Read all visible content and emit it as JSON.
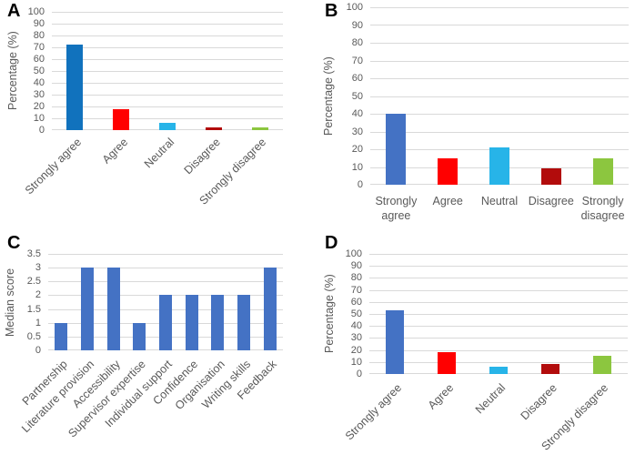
{
  "style": {
    "grid_color": "#D9D9D9",
    "tick_color": "#595959",
    "label_color": "#595959",
    "panel_letter_color": "#000000",
    "background": "#FFFFFF"
  },
  "chart_data": [
    {
      "panel": "A",
      "type": "bar",
      "title": "",
      "xlabel": "",
      "ylabel": "Percentage (%)",
      "ylim": [
        0,
        100
      ],
      "yticks": [
        0,
        10,
        20,
        30,
        40,
        50,
        60,
        70,
        80,
        90,
        100
      ],
      "categories": [
        "Strongly agree",
        "Agree",
        "Neutral",
        "Disagree",
        "Strongly disagree"
      ],
      "values": [
        72,
        18,
        6,
        2,
        2
      ],
      "colors": [
        "#1172BD",
        "#FF0000",
        "#27B4E8",
        "#B20C0C",
        "#8CC63F"
      ],
      "grid": "horizontal",
      "legend": "none",
      "x_label_style": "rotated-45"
    },
    {
      "panel": "B",
      "type": "bar",
      "title": "",
      "xlabel": "",
      "ylabel": "Percentage (%)",
      "ylim": [
        0,
        100
      ],
      "yticks": [
        0,
        10,
        20,
        30,
        40,
        50,
        60,
        70,
        80,
        90,
        100
      ],
      "categories": [
        "Strongly agree",
        "Agree",
        "Neutral",
        "Disagree",
        "Strongly disagree"
      ],
      "values": [
        40,
        15,
        21,
        9,
        15
      ],
      "colors": [
        "#4472C4",
        "#FF0000",
        "#27B4E8",
        "#B20C0C",
        "#8CC63F"
      ],
      "grid": "horizontal",
      "legend": "none",
      "x_label_style": "horizontal"
    },
    {
      "panel": "C",
      "type": "bar",
      "title": "",
      "xlabel": "",
      "ylabel": "Median score",
      "ylim": [
        0,
        3.5
      ],
      "yticks": [
        0,
        0.5,
        1,
        1.5,
        2,
        2.5,
        3,
        3.5
      ],
      "categories": [
        "Partnership",
        "Literature provision",
        "Accessibility",
        "Supervisor expertise",
        "Individual support",
        "Confidence",
        "Organisation",
        "Writing skills",
        "Feedback"
      ],
      "values": [
        1,
        3,
        3,
        1,
        2,
        2,
        2,
        2,
        3
      ],
      "colors": [
        "#4472C4",
        "#4472C4",
        "#4472C4",
        "#4472C4",
        "#4472C4",
        "#4472C4",
        "#4472C4",
        "#4472C4",
        "#4472C4"
      ],
      "grid": "horizontal",
      "legend": "none",
      "x_label_style": "rotated-45"
    },
    {
      "panel": "D",
      "type": "bar",
      "title": "",
      "xlabel": "",
      "ylabel": "Percentage (%)",
      "ylim": [
        0,
        100
      ],
      "yticks": [
        0,
        10,
        20,
        30,
        40,
        50,
        60,
        70,
        80,
        90,
        100
      ],
      "categories": [
        "Strongly agree",
        "Agree",
        "Neutral",
        "Disagree",
        "Strongly disagree"
      ],
      "values": [
        53,
        18,
        6,
        8,
        15
      ],
      "colors": [
        "#4472C4",
        "#FF0000",
        "#27B4E8",
        "#B20C0C",
        "#8CC63F"
      ],
      "grid": "horizontal",
      "legend": "none",
      "x_label_style": "rotated-45"
    }
  ]
}
